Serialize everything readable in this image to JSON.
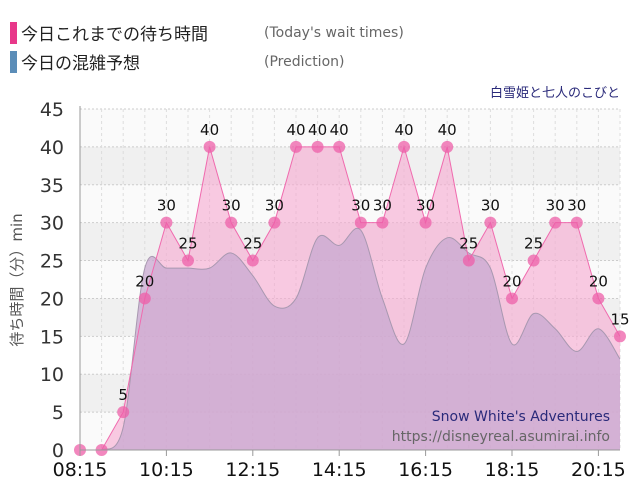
{
  "legend": [
    {
      "label": "今日これまでの待ち時間",
      "sub": "(Today's wait times)",
      "color": "#e8388a"
    },
    {
      "label": "今日の混雑予想",
      "sub": "(Prediction)",
      "color": "#5b8db8"
    }
  ],
  "attraction_jp": "白雪姫と七人のこびと",
  "chart_data": {
    "type": "area",
    "ylabel": "待ち時間（分）min",
    "ylim": [
      0,
      45
    ],
    "yticks": [
      "0",
      "5",
      "10",
      "15",
      "20",
      "25",
      "30",
      "35",
      "40",
      "45"
    ],
    "xlim": [
      "08:15",
      "20:45"
    ],
    "xticks": [
      "08:15",
      "10:15",
      "12:15",
      "14:15",
      "16:15",
      "18:15",
      "20:15"
    ],
    "grid": true,
    "x": [
      "08:15",
      "08:45",
      "09:15",
      "09:45",
      "10:15",
      "10:45",
      "11:15",
      "11:45",
      "12:15",
      "12:45",
      "13:15",
      "13:45",
      "14:15",
      "14:45",
      "15:15",
      "15:45",
      "16:15",
      "16:45",
      "17:15",
      "17:45",
      "18:15",
      "18:45",
      "19:15",
      "19:45",
      "20:15",
      "20:45"
    ],
    "series": [
      {
        "name": "今日これまでの待ち時間",
        "color": "#ee6aae",
        "values": [
          0,
          0,
          5,
          20,
          30,
          25,
          40,
          30,
          25,
          30,
          40,
          40,
          40,
          30,
          30,
          40,
          30,
          40,
          25,
          30,
          20,
          25,
          30,
          30,
          20,
          15
        ]
      },
      {
        "name": "今日の混雑予想",
        "color": "#b99cc8",
        "values": [
          null,
          0,
          3,
          24,
          24,
          24,
          24,
          26,
          23,
          19,
          20,
          28,
          27,
          29,
          20,
          14,
          24,
          28,
          26,
          24,
          14,
          18,
          16,
          13,
          16,
          12
        ]
      }
    ],
    "data_labels": [
      "",
      "",
      "5",
      "20",
      "30",
      "25",
      "40",
      "30",
      "25",
      "30",
      "40",
      "40",
      "40",
      "30",
      "30",
      "40",
      "30",
      "40",
      "25",
      "30",
      "20",
      "25",
      "30",
      "30",
      "20",
      "15"
    ]
  },
  "watermark": {
    "title": "Snow White's Adventures",
    "url": "https://disneyreal.asumirai.info"
  }
}
